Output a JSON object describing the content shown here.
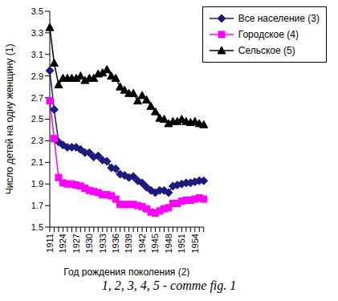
{
  "chart_data": {
    "type": "line",
    "x_label": "Год рождения поколения (2)",
    "y_label": "Число детей на одну женщину (1)",
    "annotation": "1, 2, 3, 4, 5 - comme fig. 1",
    "categories": [
      "1911",
      null,
      null,
      "1924",
      null,
      null,
      "1927",
      null,
      null,
      "1930",
      null,
      null,
      "1933",
      null,
      null,
      "1936",
      null,
      null,
      "1939",
      null,
      null,
      "1942",
      null,
      null,
      "1945",
      null,
      null,
      "1948",
      null,
      null,
      "1951",
      null,
      null,
      "1954",
      null,
      null
    ],
    "series": [
      {
        "name": "Все население (3)",
        "color": "#1a1a80",
        "marker": "diamond",
        "values": [
          2.95,
          2.59,
          2.29,
          2.26,
          2.24,
          2.24,
          2.24,
          2.22,
          2.19,
          2.19,
          2.15,
          2.16,
          2.12,
          2.11,
          2.05,
          2.04,
          1.99,
          1.98,
          1.96,
          1.97,
          1.93,
          1.91,
          1.87,
          1.84,
          1.82,
          1.84,
          1.84,
          1.82,
          1.88,
          1.89,
          1.9,
          1.91,
          1.91,
          1.92,
          1.93,
          1.93
        ]
      },
      {
        "name": "Городское (4)",
        "color": "#ff00ff",
        "marker": "square",
        "values": [
          2.67,
          2.32,
          1.96,
          1.91,
          1.9,
          1.9,
          1.89,
          1.88,
          1.86,
          1.84,
          1.83,
          1.82,
          1.8,
          1.8,
          1.79,
          1.76,
          1.71,
          1.71,
          1.71,
          1.71,
          1.7,
          1.69,
          1.67,
          1.64,
          1.63,
          1.65,
          1.67,
          1.68,
          1.72,
          1.72,
          1.74,
          1.75,
          1.75,
          1.76,
          1.77,
          1.76
        ]
      },
      {
        "name": "Сельское (5)",
        "color": "#000000",
        "marker": "triangle",
        "values": [
          3.35,
          3.02,
          2.82,
          2.88,
          2.88,
          2.88,
          2.88,
          2.9,
          2.86,
          2.88,
          2.88,
          2.92,
          2.93,
          2.96,
          2.9,
          2.88,
          2.8,
          2.77,
          2.74,
          2.74,
          2.67,
          2.72,
          2.68,
          2.62,
          2.57,
          2.51,
          2.5,
          2.46,
          2.48,
          2.48,
          2.5,
          2.48,
          2.47,
          2.48,
          2.46,
          2.45
        ]
      }
    ],
    "ylim": [
      1.5,
      3.5
    ],
    "yticks": [
      1.5,
      1.7,
      1.9,
      2.1,
      2.3,
      2.5,
      2.7,
      2.9,
      3.1,
      3.3,
      3.5
    ],
    "grid": false,
    "legend": "upper-right"
  }
}
